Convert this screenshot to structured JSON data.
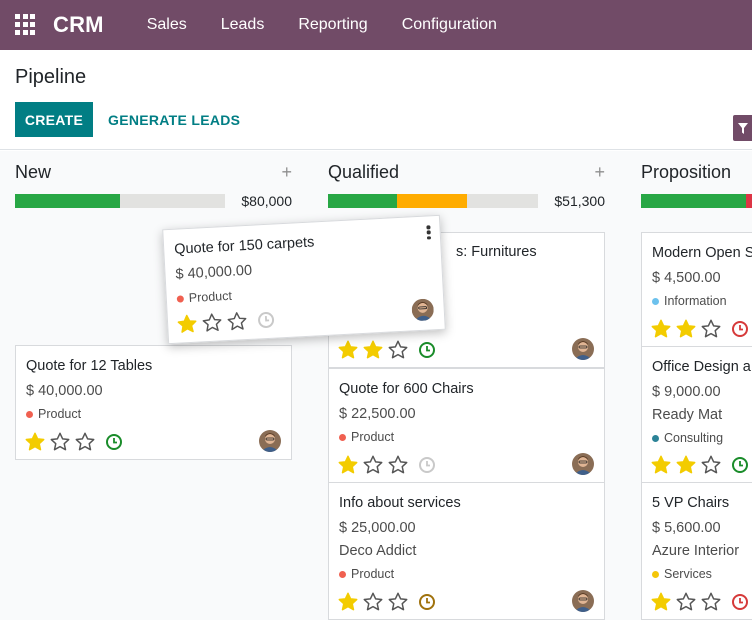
{
  "navbar": {
    "app_name": "CRM",
    "menu": [
      "Sales",
      "Leads",
      "Reporting",
      "Configuration"
    ]
  },
  "control_panel": {
    "title": "Pipeline",
    "create_label": "CREATE",
    "generate_label": "GENERATE LEADS"
  },
  "colors": {
    "navbar": "#714b67",
    "primary": "#017e84",
    "progress_green": "#28a745",
    "progress_orange": "#ffac00",
    "progress_red": "#dc3545",
    "star_filled": "#f3cc00",
    "star_empty": "#555555"
  },
  "columns": [
    {
      "title": "New",
      "total": "$80,000",
      "progress": [
        {
          "color": "#28a745",
          "fraction": 0.5
        }
      ],
      "cards": [
        {
          "title": "Quote for 12 Tables",
          "amount": "$ 40,000.00",
          "company": "",
          "tag": "Product",
          "tag_color": "#f06050",
          "stars": 1,
          "activity": "green"
        }
      ]
    },
    {
      "title": "Qualified",
      "total": "$51,300",
      "progress": [
        {
          "color": "#28a745",
          "fraction": 0.33
        },
        {
          "color": "#ffac00",
          "fraction": 0.33
        }
      ],
      "cards": [
        {
          "title": "s: Furnitures",
          "amount": "",
          "company": "",
          "tag": "",
          "tag_color": "",
          "stars": 2,
          "activity": "green"
        },
        {
          "title": "Quote for 600 Chairs",
          "amount": "$ 22,500.00",
          "company": "",
          "tag": "Product",
          "tag_color": "#f06050",
          "stars": 1,
          "activity": "grey"
        },
        {
          "title": "Info about services",
          "amount": "$ 25,000.00",
          "company": "Deco Addict",
          "tag": "Product",
          "tag_color": "#f06050",
          "stars": 1,
          "activity": "orange"
        }
      ]
    },
    {
      "title": "Proposition",
      "total": "",
      "progress": [
        {
          "color": "#28a745",
          "fraction": 0.5
        },
        {
          "color": "#dc3545",
          "fraction": 0.05
        }
      ],
      "cards": [
        {
          "title": "Modern Open S",
          "amount": "$ 4,500.00",
          "company": "",
          "tag": "Information",
          "tag_color": "#6cc1ed",
          "stars": 2,
          "activity": "red"
        },
        {
          "title": "Office Design a",
          "amount": "$ 9,000.00",
          "company": "Ready Mat",
          "tag": "Consulting",
          "tag_color": "#2c8397",
          "stars": 2,
          "activity": "green"
        },
        {
          "title": "5 VP Chairs",
          "amount": "$ 5,600.00",
          "company": "Azure Interior",
          "tag": "Services",
          "tag_color": "#f4c609",
          "stars": 1,
          "activity": "red"
        }
      ]
    }
  ],
  "dragged_card": {
    "title": "Quote for 150 carpets",
    "amount": "$ 40,000.00",
    "tag": "Product",
    "tag_color": "#f06050",
    "stars": 1,
    "activity": "grey"
  }
}
